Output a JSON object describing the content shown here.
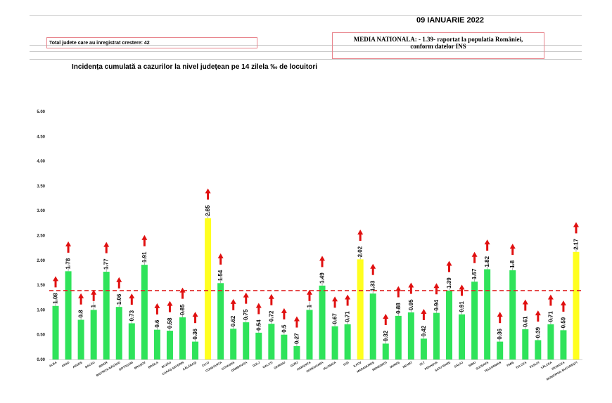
{
  "header": {
    "date": "09 IANUARIE 2022",
    "counties_increase": "Total judete care au inregistrat crestere: 42",
    "national_line1": "MEDIA NATIONALA:  - 1.39-  raportat la populatia României,",
    "national_line2": "conform datelor INS"
  },
  "chart_data": {
    "type": "bar",
    "title": "Incidența cumulată a cazurilor la nivel județean pe 14 zilela ‰ de locuitori",
    "xlabel": "",
    "ylabel": "",
    "ylim": [
      0,
      5
    ],
    "yticks": [
      "0.00",
      "0.50",
      "1.00",
      "1.50",
      "2.00",
      "2.50",
      "3.00",
      "3.50",
      "4.00",
      "4.50",
      "5.00"
    ],
    "reference_line": 1.39,
    "categories": [
      "ALBA",
      "ARAD",
      "ARGEȘ",
      "BACĂU",
      "BIHOR",
      "BISTRIȚA-NĂSĂUD",
      "BOTOȘANI",
      "BRAȘOV",
      "BRĂILA",
      "BUZĂU",
      "CARAȘ-SEVERIN",
      "CĂLĂRAȘI",
      "CLUJ",
      "CONSTANȚA",
      "COVASNA",
      "DÂMBOVIȚA",
      "DOLJ",
      "GALAȚI",
      "GIURGIU",
      "GORJ",
      "HARGHITA",
      "HUNEDOARA",
      "IALOMIȚA",
      "IAȘI",
      "ILFOV",
      "MARAMUREȘ",
      "MEHEDINȚI",
      "MUREȘ",
      "NEAMȚ",
      "OLT",
      "PRAHOVA",
      "SATU MARE",
      "SĂLAJ",
      "SIBIU",
      "SUCEAVA",
      "TELEORMAN",
      "TIMIȘ",
      "TULCEA",
      "VASLUI",
      "VÂLCEA",
      "VRANCEA",
      "MUNICIPIUL BUCUREȘTI"
    ],
    "values": [
      1.08,
      1.78,
      0.8,
      1,
      1.77,
      1.06,
      0.73,
      1.91,
      0.6,
      0.58,
      0.85,
      0.36,
      2.85,
      1.54,
      0.62,
      0.75,
      0.54,
      0.72,
      0.5,
      0.27,
      1,
      1.49,
      0.67,
      0.71,
      2.02,
      1.33,
      0.32,
      0.88,
      0.95,
      0.42,
      0.94,
      1.39,
      0.91,
      1.57,
      1.82,
      0.36,
      1.8,
      0.61,
      0.39,
      0.71,
      0.59,
      2.17
    ],
    "value_labels": [
      "1.08",
      "1.78",
      "0.8",
      "1",
      "1.77",
      "1.06",
      "0.73",
      "1.91",
      "0.6",
      "0.58",
      "0.85",
      "0.36",
      "2.85",
      "1.54",
      "0.62",
      "0.75",
      "0.54",
      "0.72",
      "0.5",
      "0.27",
      "1",
      "1.49",
      "0.67",
      "0.71",
      "2.02",
      "1.33",
      "0.32",
      "0.88",
      "0.95",
      "0.42",
      "0.94",
      "1.39",
      "0.91",
      "1.57",
      "1.82",
      "0.36",
      "1.8",
      "0.61",
      "0.39",
      "0.71",
      "0.59",
      "2.17"
    ],
    "highlighted": [
      "CLUJ",
      "ILFOV",
      "MUNICIPIUL BUCUREȘTI"
    ],
    "colors": {
      "bar": "#2fe35a",
      "highlight": "#ffff1f",
      "arrow": "#e01010",
      "reference": "#e02020",
      "error": "#9a9a9a"
    },
    "grid": false,
    "legend": "none"
  }
}
